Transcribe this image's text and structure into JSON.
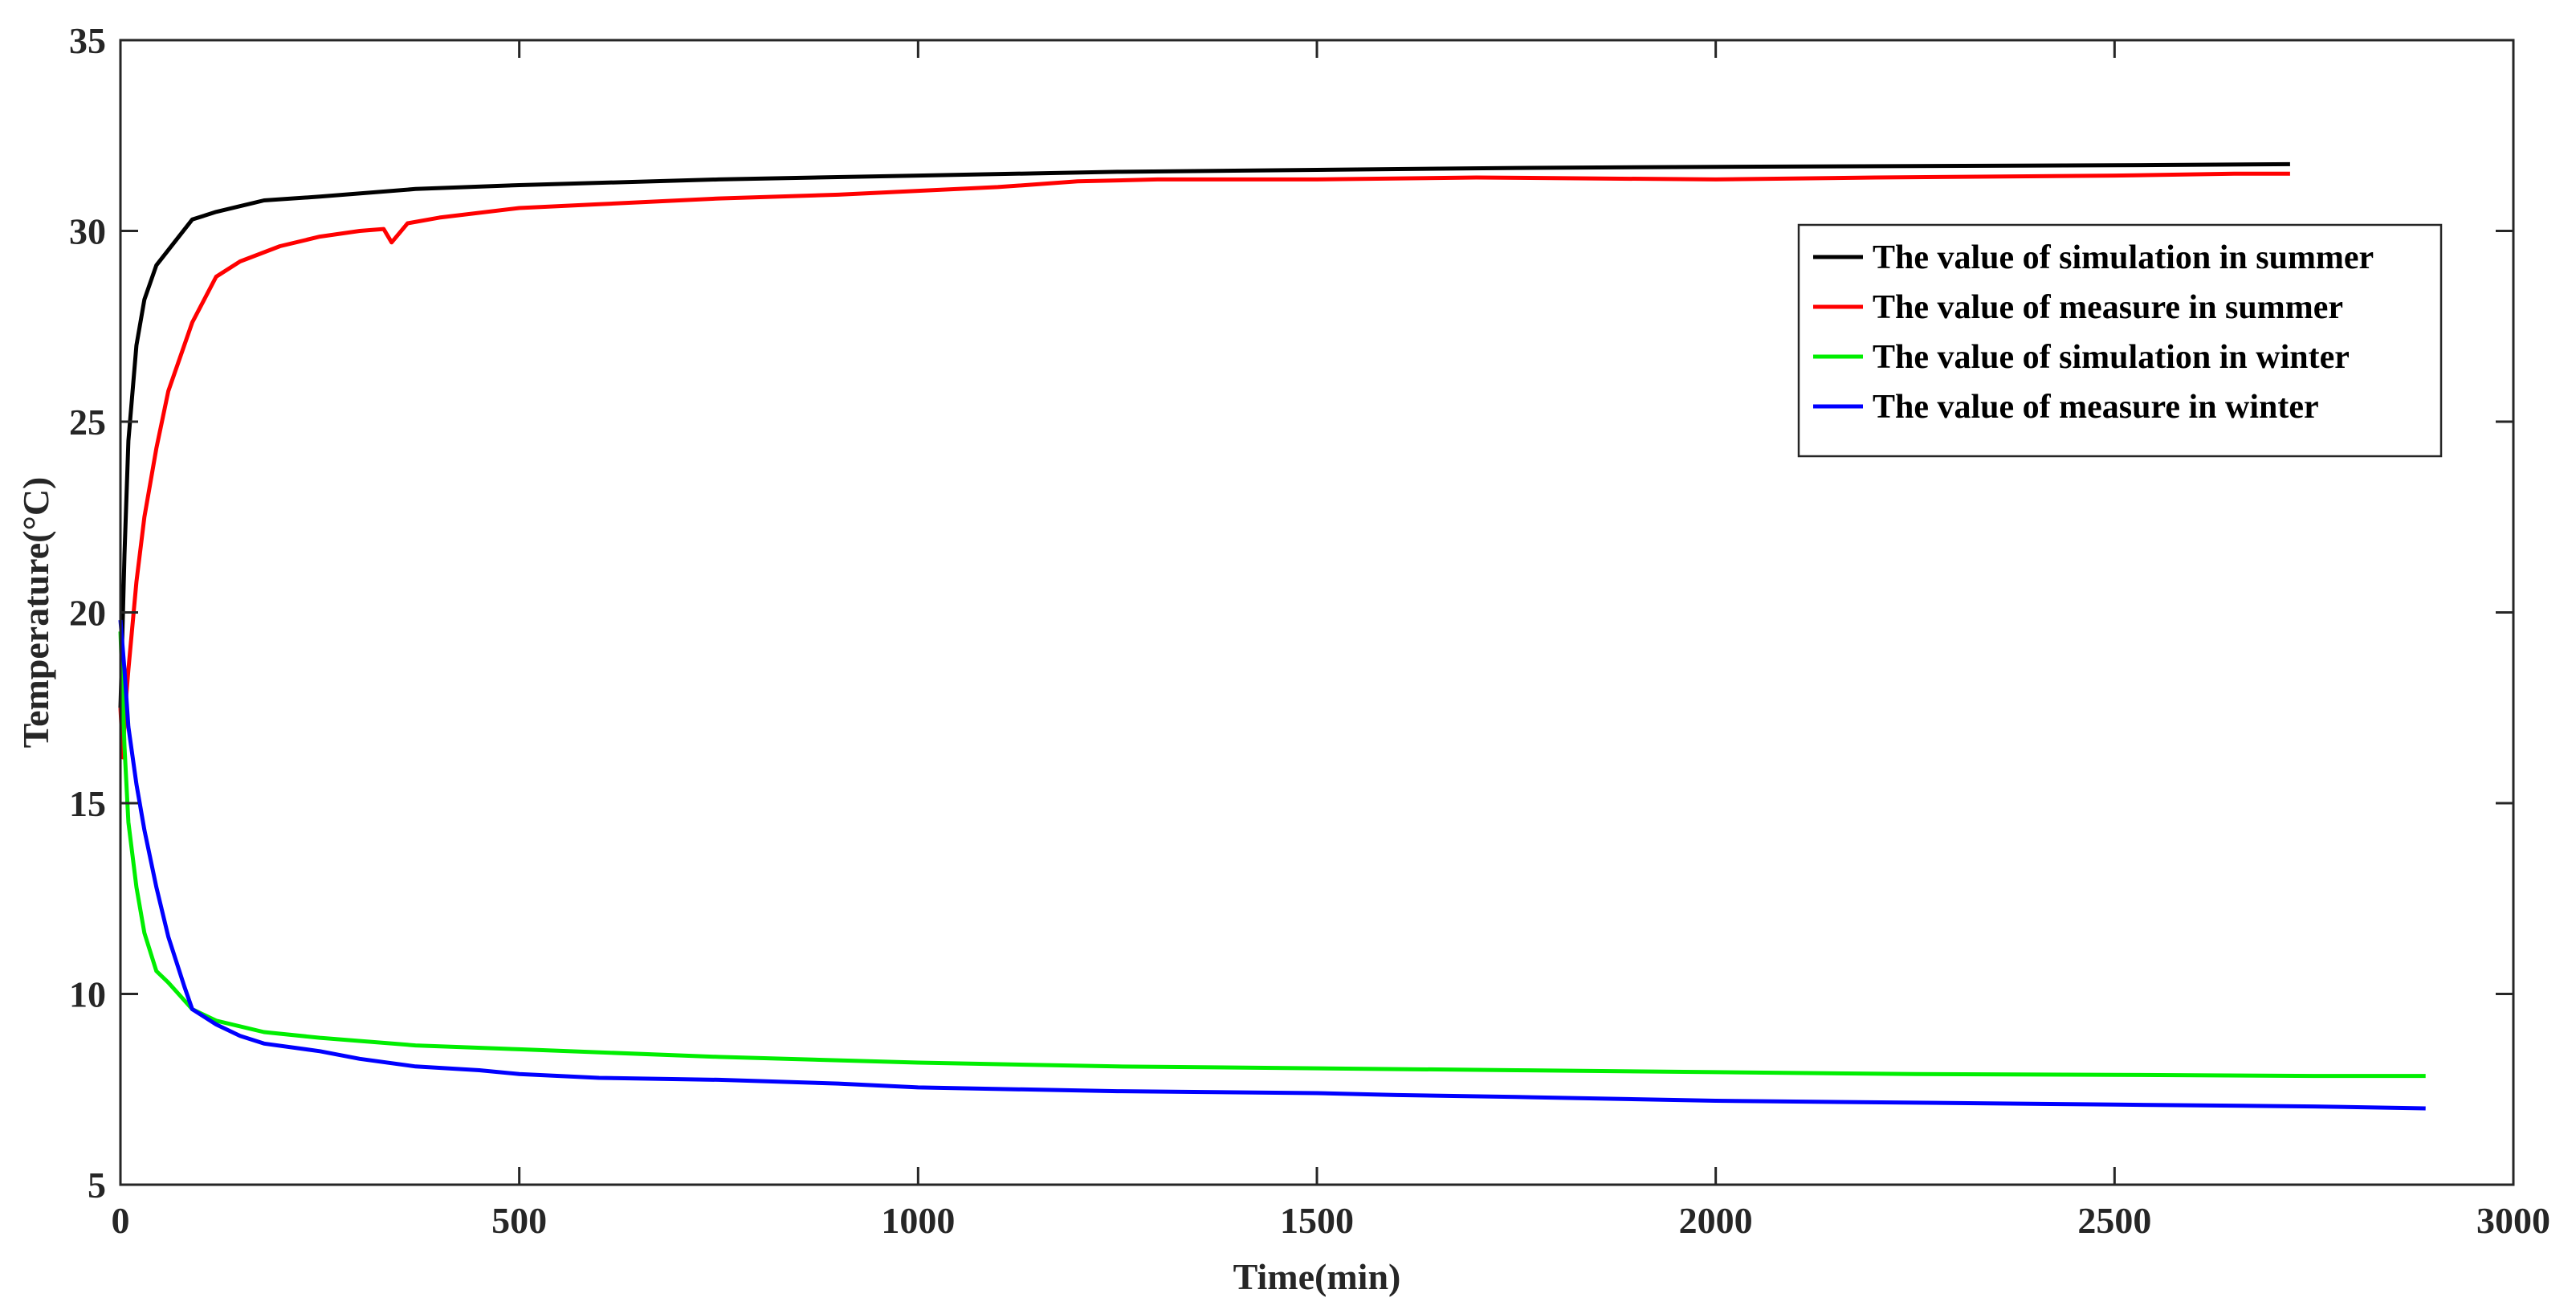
{
  "chart_data": {
    "type": "line",
    "xlabel": "Time(min)",
    "ylabel": "Temperature(°C)",
    "xlim": [
      0,
      3000
    ],
    "ylim": [
      5,
      35
    ],
    "xticks": [
      0,
      500,
      1000,
      1500,
      2000,
      2500,
      3000
    ],
    "yticks": [
      5,
      10,
      15,
      20,
      25,
      30,
      35
    ],
    "xtick_labels": [
      "0",
      "500",
      "1000",
      "1500",
      "2000",
      "2500",
      "3000"
    ],
    "ytick_labels": [
      "5",
      "10",
      "15",
      "20",
      "25",
      "30",
      "35"
    ],
    "grid": false,
    "legend_position": "top-right",
    "series": [
      {
        "name": "The value of simulation in summer",
        "color": "#000000",
        "x": [
          0,
          5,
          10,
          20,
          30,
          45,
          60,
          90,
          120,
          180,
          250,
          370,
          500,
          750,
          1000,
          1250,
          1500,
          1750,
          2000,
          2250,
          2500,
          2720
        ],
        "y": [
          17.5,
          21.5,
          24.5,
          27.0,
          28.2,
          29.1,
          29.5,
          30.3,
          30.5,
          30.8,
          30.9,
          31.1,
          31.2,
          31.35,
          31.45,
          31.55,
          31.6,
          31.65,
          31.68,
          31.7,
          31.72,
          31.75
        ]
      },
      {
        "name": "The value of measure in summer",
        "color": "#ff0000",
        "x": [
          0,
          3,
          6,
          10,
          20,
          30,
          45,
          60,
          90,
          120,
          150,
          200,
          250,
          300,
          330,
          340,
          360,
          400,
          500,
          600,
          750,
          900,
          1000,
          1100,
          1200,
          1300,
          1500,
          1700,
          2000,
          2200,
          2500,
          2650,
          2720
        ],
        "y": [
          17.5,
          16.2,
          17.5,
          18.5,
          20.8,
          22.5,
          24.3,
          25.8,
          27.6,
          28.8,
          29.2,
          29.6,
          29.85,
          30.0,
          30.05,
          29.7,
          30.2,
          30.35,
          30.6,
          30.7,
          30.85,
          30.95,
          31.05,
          31.15,
          31.3,
          31.35,
          31.35,
          31.4,
          31.35,
          31.4,
          31.45,
          31.5,
          31.5
        ]
      },
      {
        "name": "The value of simulation in winter",
        "color": "#00ee00",
        "x": [
          0,
          5,
          10,
          20,
          30,
          45,
          60,
          90,
          120,
          180,
          250,
          370,
          500,
          750,
          1000,
          1250,
          1500,
          1750,
          2000,
          2250,
          2500,
          2750,
          2890
        ],
        "y": [
          19.5,
          16.5,
          14.5,
          12.8,
          11.6,
          10.6,
          10.3,
          9.6,
          9.3,
          9.0,
          8.85,
          8.65,
          8.55,
          8.35,
          8.2,
          8.1,
          8.05,
          8.0,
          7.95,
          7.9,
          7.88,
          7.85,
          7.85
        ]
      },
      {
        "name": "The value of measure in winter",
        "color": "#0000ff",
        "x": [
          0,
          5,
          10,
          20,
          30,
          45,
          60,
          80,
          90,
          120,
          150,
          180,
          250,
          300,
          370,
          450,
          500,
          600,
          750,
          900,
          1000,
          1250,
          1500,
          1600,
          1750,
          2000,
          2250,
          2500,
          2750,
          2890
        ],
        "y": [
          19.8,
          18.5,
          17.0,
          15.5,
          14.3,
          12.8,
          11.5,
          10.2,
          9.6,
          9.2,
          8.9,
          8.7,
          8.5,
          8.3,
          8.1,
          8.0,
          7.9,
          7.8,
          7.75,
          7.65,
          7.55,
          7.45,
          7.4,
          7.35,
          7.3,
          7.2,
          7.15,
          7.1,
          7.05,
          7.0
        ]
      }
    ]
  }
}
